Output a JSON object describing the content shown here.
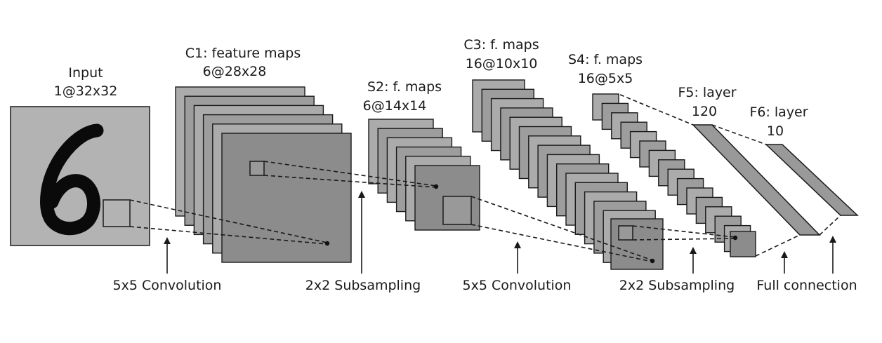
{
  "layers": {
    "input": {
      "name": "Input",
      "shape": "1@32x32"
    },
    "c1": {
      "name": "C1: feature maps",
      "shape": "6@28x28",
      "maps": 6
    },
    "s2": {
      "name": "S2: f. maps",
      "shape": "6@14x14",
      "maps": 6
    },
    "c3": {
      "name": "C3: f. maps",
      "shape": "16@10x10",
      "maps": 16
    },
    "s4": {
      "name": "S4: f. maps",
      "shape": "16@5x5",
      "maps": 16
    },
    "f5": {
      "name": "F5: layer",
      "shape": "120"
    },
    "f6": {
      "name": "F6: layer",
      "shape": "10"
    }
  },
  "operations": {
    "conv1": "5x5 Convolution",
    "sub1": "2x2 Subsampling",
    "conv2": "5x5 Convolution",
    "sub2": "2x2 Subsampling",
    "full": "Full connection"
  },
  "colors": {
    "map_light": "#ababab",
    "map_dark": "#8c8c8c",
    "input_bg": "#b3b3b3",
    "digit": "#0a0a0a",
    "stroke": "#1a1a1a"
  }
}
